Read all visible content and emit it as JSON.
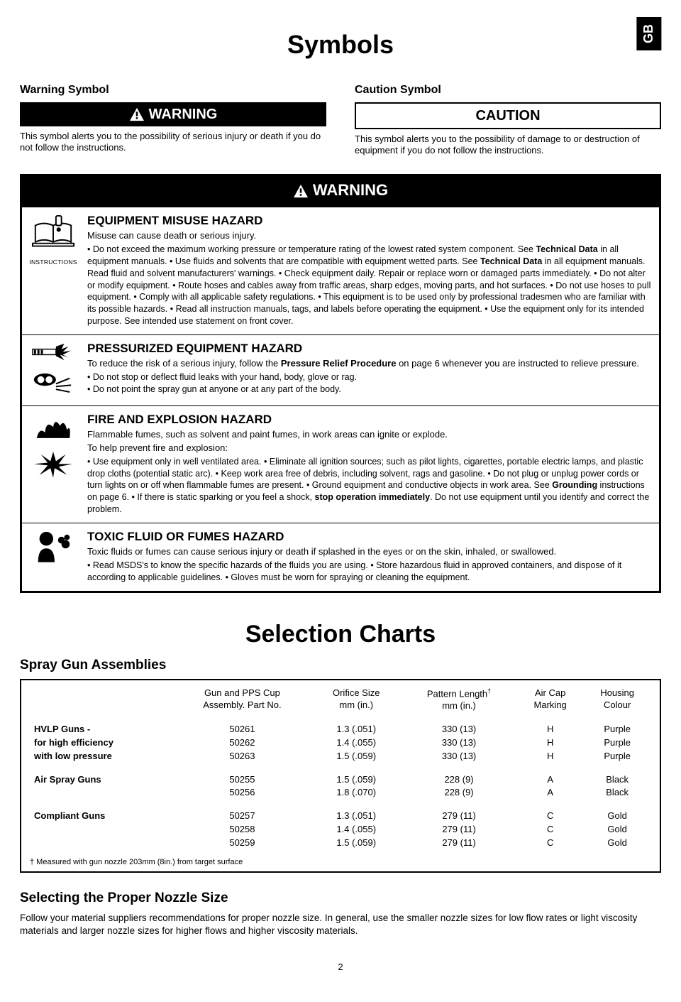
{
  "lang_tab": "GB",
  "page_title": "Symbols",
  "warning_symbol": {
    "heading": "Warning Symbol",
    "banner": "WARNING",
    "desc": "This symbol alerts you to the possibility of serious injury or death if you do not follow the instructions."
  },
  "caution_symbol": {
    "heading": "Caution Symbol",
    "banner": "CAUTION",
    "desc": "This symbol alerts you to the possibility of damage to or destruction of equipment if you do not follow the instructions."
  },
  "warning_block": {
    "banner": "WARNING",
    "hazards": [
      {
        "icon_caption": "INSTRUCTIONS",
        "title": "EQUIPMENT MISUSE HAZARD",
        "lead": "Misuse can cause death or serious injury.",
        "text_html": "• Do not exceed the maximum working pressure or temperature rating of the lowest rated system component. See <b>Technical Data</b> in all equipment manuals. • Use fluids and solvents that are compatible with equipment wetted parts. See <b>Technical Data</b> in all equipment manuals. Read fluid and solvent manufacturers' warnings. • Check equipment daily. Repair or replace worn or damaged parts immediately. • Do not alter or modify equipment. • Route hoses and cables away from traffic areas, sharp edges, moving parts, and hot surfaces. • Do not use hoses to pull equipment. • Comply with all applicable safety regulations. • This equipment is to be used only by professional tradesmen who are familiar with its possible hazards. • Read all instruction manuals, tags, and labels before operating the equipment. • Use the equipment only for its intended purpose. See intended use statement on front cover."
      },
      {
        "title": "PRESSURIZED EQUIPMENT HAZARD",
        "lead_html": "To reduce the risk of a serious injury, follow the <b>Pressure Relief Procedure</b> on page 6 whenever you are instructed to relieve pressure.",
        "text_html": "• Do not stop or deflect fluid leaks with your hand, body, glove or rag.<br>• Do not point the spray gun at anyone or at any part of the body."
      },
      {
        "title": "FIRE AND EXPLOSION HAZARD",
        "lead": "Flammable fumes, such as solvent and paint fumes, in work areas can ignite or explode.",
        "lead2": "To help prevent fire and explosion:",
        "text_html": "• Use equipment only in well ventilated area. • Eliminate all ignition sources; such as pilot lights, cigarettes, portable electric lamps, and plastic drop cloths (potential static arc). • Keep work area free of debris, including solvent, rags and gasoline. • Do not plug or unplug power cords or turn lights on or off when flammable fumes are present. • Ground equipment and conductive objects in work area. See <b>Grounding</b> instructions on page 6. • If there is static sparking or you feel a shock, <b>stop operation immediately</b>. Do not use equipment until you identify and correct the problem."
      },
      {
        "title": "TOXIC FLUID OR FUMES HAZARD",
        "lead": "Toxic fluids or fumes can cause serious injury or death if splashed in the eyes or on the skin, inhaled, or swallowed.",
        "text_html": "• Read MSDS's to know the specific hazards of the fluids you are using. • Store hazardous fluid in approved containers, and dispose of it according to applicable guidelines. • Gloves must be worn for spraying or cleaning the equipment."
      }
    ]
  },
  "selection": {
    "title": "Selection Charts",
    "subheading": "Spray Gun Assemblies",
    "columns": [
      "",
      "Gun and PPS Cup\nAssembly. Part No.",
      "Orifice Size\nmm (in.)",
      "Pattern Length†\nmm (in.)",
      "Air Cap\nMarking",
      "Housing\nColour"
    ],
    "groups": [
      {
        "label_lines": [
          "HVLP Guns -",
          "for high efficiency",
          "with low pressure"
        ],
        "rows": [
          [
            "50261",
            "1.3 (.051)",
            "330 (13)",
            "H",
            "Purple"
          ],
          [
            "50262",
            "1.4 (.055)",
            "330 (13)",
            "H",
            "Purple"
          ],
          [
            "50263",
            "1.5 (.059)",
            "330 (13)",
            "H",
            "Purple"
          ]
        ]
      },
      {
        "label_lines": [
          "Air Spray Guns"
        ],
        "rows": [
          [
            "50255",
            "1.5 (.059)",
            "228 (9)",
            "A",
            "Black"
          ],
          [
            "50256",
            "1.8 (.070)",
            "228 (9)",
            "A",
            "Black"
          ]
        ]
      },
      {
        "label_lines": [
          "Compliant Guns"
        ],
        "rows": [
          [
            "50257",
            "1.3 (.051)",
            "279 (11)",
            "C",
            "Gold"
          ],
          [
            "50258",
            "1.4 (.055)",
            "279 (11)",
            "C",
            "Gold"
          ],
          [
            "50259",
            "1.5 (.059)",
            "279 (11)",
            "C",
            "Gold"
          ]
        ]
      }
    ],
    "footnote": "† Measured with gun nozzle 203mm (8in.) from target surface"
  },
  "nozzle": {
    "heading": "Selecting the Proper Nozzle Size",
    "para": "Follow your material suppliers recommendations for proper nozzle size. In general, use the smaller nozzle sizes for low flow rates or light viscosity materials and larger nozzle sizes for higher flows and higher viscosity materials."
  },
  "page_number": "2"
}
